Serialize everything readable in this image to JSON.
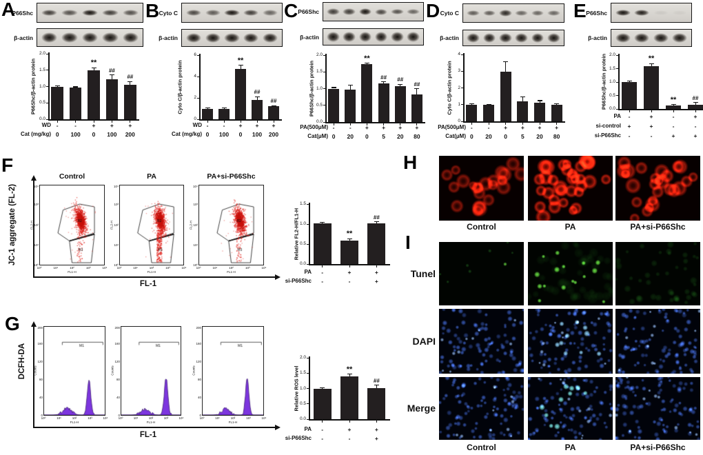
{
  "figure": {
    "background": "#ffffff",
    "bar_color": "#231f20",
    "hist_fill_color": "#7d36df",
    "dot_color": "#e5271e"
  },
  "panels": {
    "A": {
      "label": "A",
      "blots": [
        {
          "label": "P66Shc",
          "thick": false,
          "intensities": [
            0.8,
            0.7,
            1.0,
            0.8,
            0.7
          ]
        },
        {
          "label": "β-actin",
          "thick": true,
          "intensities": [
            1,
            1,
            1,
            1,
            1
          ]
        }
      ],
      "chart_data": {
        "type": "bar",
        "ylabel": "P66Shc/β-actin protein",
        "ylim": [
          0,
          2
        ],
        "yticks": [
          "0.0",
          "0.5",
          "1.0",
          "1.5",
          "2.0"
        ],
        "values": [
          1.0,
          0.97,
          1.5,
          1.22,
          1.05
        ],
        "errors": [
          0.02,
          0.02,
          0.07,
          0.13,
          0.1
        ],
        "sig": [
          "",
          "",
          "**",
          "##",
          "##"
        ],
        "xrows": [
          {
            "label": "WD",
            "values": [
              "-",
              "-",
              "+",
              "+",
              "+"
            ]
          },
          {
            "label": "Cat (mg/kg)",
            "values": [
              "0",
              "100",
              "0",
              "100",
              "200"
            ]
          }
        ]
      }
    },
    "B": {
      "label": "B",
      "blots": [
        {
          "label": "Cyto C",
          "thick": false,
          "intensities": [
            0.75,
            0.65,
            1.0,
            0.8,
            0.6
          ]
        },
        {
          "label": "β-actin",
          "thick": true,
          "intensities": [
            1,
            1,
            1,
            1,
            1
          ]
        }
      ],
      "chart_data": {
        "type": "bar",
        "ylabel": "Cyto C/β-actin protein",
        "ylim": [
          0,
          6
        ],
        "yticks": [
          "0",
          "2",
          "4",
          "6"
        ],
        "values": [
          1.0,
          1.0,
          4.7,
          1.8,
          1.2
        ],
        "errors": [
          0.06,
          0.06,
          0.35,
          0.3,
          0.08
        ],
        "sig": [
          "",
          "",
          "**",
          "##",
          "##"
        ],
        "xrows": [
          {
            "label": "WD",
            "values": [
              "-",
              "-",
              "+",
              "+",
              "+"
            ]
          },
          {
            "label": "Cat (mg/kg)",
            "values": [
              "0",
              "100",
              "0",
              "100",
              "200"
            ]
          }
        ]
      }
    },
    "C": {
      "label": "C",
      "blots": [
        {
          "label": "P66Shc",
          "thick": false,
          "intensities": [
            0.8,
            0.8,
            1.0,
            0.75,
            0.7,
            0.6
          ]
        },
        {
          "label": "β-actin",
          "thick": true,
          "intensities": [
            1,
            1,
            1,
            1,
            1,
            1
          ]
        }
      ],
      "chart_data": {
        "type": "bar",
        "ylabel": "P66Shc/β-actin protein",
        "ylim": [
          0,
          2
        ],
        "yticks": [
          "0.0",
          "0.5",
          "1.0",
          "1.5",
          "2.0"
        ],
        "values": [
          1.0,
          0.97,
          1.73,
          1.15,
          1.07,
          0.82
        ],
        "errors": [
          0.03,
          0.13,
          0.03,
          0.05,
          0.06,
          0.18
        ],
        "sig": [
          "",
          "",
          "**",
          "##",
          "##",
          "##"
        ],
        "xrows": [
          {
            "label": "PA(500μM)",
            "values": [
              "-",
              "-",
              "+",
              "+",
              "+",
              "+"
            ]
          },
          {
            "label": "Cat(μM)",
            "values": [
              "0",
              "20",
              "0",
              "5",
              "20",
              "80"
            ]
          }
        ]
      }
    },
    "D": {
      "label": "D",
      "blots": [
        {
          "label": "Cyto C",
          "thick": false,
          "intensities": [
            0.65,
            0.65,
            0.9,
            0.6,
            0.6,
            0.6
          ]
        },
        {
          "label": "β-actin",
          "thick": true,
          "intensities": [
            1,
            1,
            1,
            1,
            1,
            1
          ]
        }
      ],
      "chart_data": {
        "type": "bar",
        "ylabel": "Cyto C/β-actin protein",
        "ylim": [
          0,
          4
        ],
        "yticks": [
          "0",
          "1",
          "2",
          "3",
          "4"
        ],
        "values": [
          1.0,
          0.97,
          2.97,
          1.2,
          1.12,
          0.97
        ],
        "errors": [
          0.05,
          0.04,
          0.6,
          0.25,
          0.12,
          0.07
        ],
        "sig": [
          "",
          "",
          "",
          "",
          "",
          ""
        ],
        "xrows": [
          {
            "label": "PA(500μM)",
            "values": [
              "-",
              "-",
              "+",
              "+",
              "+",
              "+"
            ]
          },
          {
            "label": "Cat(μM)",
            "values": [
              "0",
              "20",
              "0",
              "5",
              "20",
              "80"
            ]
          }
        ]
      }
    },
    "E": {
      "label": "E",
      "blots": [
        {
          "label": "P66Shc",
          "thick": false,
          "intensities": [
            1.0,
            0.95,
            0.07,
            0.05
          ]
        },
        {
          "label": "β-actin",
          "thick": true,
          "intensities": [
            1,
            1,
            1,
            1
          ]
        }
      ],
      "chart_data": {
        "type": "bar",
        "ylabel": "P66Shc/β-actin protein",
        "ylim": [
          0,
          2
        ],
        "yticks": [
          "0.0",
          "0.5",
          "1.0",
          "1.5",
          "2.0"
        ],
        "values": [
          1.0,
          1.6,
          0.12,
          0.15
        ],
        "errors": [
          0.03,
          0.08,
          0.04,
          0.09
        ],
        "sig": [
          "",
          "**",
          "**",
          "##"
        ],
        "xrows": [
          {
            "label": "PA",
            "values": [
              "-",
              "+",
              "-",
              "+"
            ]
          },
          {
            "label": "si-control",
            "values": [
              "+",
              "+",
              "-",
              "-"
            ]
          },
          {
            "label": "si-P66Shc",
            "values": [
              "-",
              "-",
              "+",
              "+"
            ]
          }
        ]
      }
    },
    "F": {
      "label": "F",
      "ylabel": "JC-1 aggregate (FL-2)",
      "xlabel": "FL-1",
      "plot_titles": [
        "Control",
        "PA",
        "PA+si-P66Shc"
      ],
      "mini_axis": {
        "x": "FL1-H",
        "y": "FL2-H",
        "ticks": [
          "10⁰",
          "10¹",
          "10²",
          "10³",
          "10⁴"
        ]
      },
      "gate_labels": [
        "R2",
        "R3"
      ],
      "scatter_data": {
        "type": "scatter",
        "description": "JC-1 aggregate cluster in gate R2 (log FL2-H ~10^2) with monomer tail into R3",
        "tail_points": [
          55,
          240,
          65
        ]
      },
      "chart_data": {
        "type": "bar",
        "ylabel": "Relative FL2-H/FL1-H",
        "ylim": [
          0,
          1.5
        ],
        "yticks": [
          "0.0",
          "0.5",
          "1.0",
          "1.5"
        ],
        "values": [
          1.02,
          0.58,
          1.01
        ],
        "errors": [
          0.02,
          0.05,
          0.05
        ],
        "sig": [
          "",
          "**",
          "##"
        ],
        "xrows": [
          {
            "label": "PA",
            "values": [
              "-",
              "+",
              "+"
            ]
          },
          {
            "label": "si-P66Shc",
            "values": [
              "-",
              "-",
              "+"
            ]
          }
        ]
      }
    },
    "G": {
      "label": "G",
      "ylabel": "DCFH-DA",
      "xlabel": "FL-1",
      "mini_axis": {
        "x": "FL1-H",
        "y": "Counts",
        "yticks": [
          "0",
          "40",
          "80",
          "120",
          "160",
          "200"
        ],
        "xticks": [
          "10⁰",
          "10¹",
          "10²",
          "10³",
          "10⁴"
        ],
        "marker": "M1"
      },
      "hist_data": {
        "type": "area",
        "ylim": [
          0,
          200
        ],
        "series": [
          {
            "name": "Control",
            "peaks": [
              {
                "center": 0.38,
                "height": 16,
                "width": 0.1
              },
              {
                "center": 0.74,
                "height": 80,
                "width": 0.04
              }
            ]
          },
          {
            "name": "PA",
            "peaks": [
              {
                "center": 0.4,
                "height": 13,
                "width": 0.1
              },
              {
                "center": 0.755,
                "height": 84,
                "width": 0.042
              }
            ]
          },
          {
            "name": "PA+si-P66Shc",
            "peaks": [
              {
                "center": 0.38,
                "height": 15,
                "width": 0.09
              },
              {
                "center": 0.735,
                "height": 82,
                "width": 0.04
              }
            ]
          }
        ]
      },
      "chart_data": {
        "type": "bar",
        "ylabel": "Relative ROS level",
        "ylim": [
          0,
          2
        ],
        "yticks": [
          "0.0",
          "0.5",
          "1.0",
          "1.5",
          "2.0"
        ],
        "values": [
          1.0,
          1.4,
          1.01
        ],
        "errors": [
          0.02,
          0.07,
          0.1
        ],
        "sig": [
          "",
          "**",
          "##"
        ],
        "xrows": [
          {
            "label": "PA",
            "values": [
              "-",
              "+",
              "+"
            ]
          },
          {
            "label": "si-P66Shc",
            "values": [
              "-",
              "-",
              "+"
            ]
          }
        ]
      }
    },
    "H": {
      "label": "H",
      "captions": [
        "Control",
        "PA",
        "PA+si-P66Shc"
      ],
      "stain": "red mitochondrial fluorescence"
    },
    "I": {
      "label": "I",
      "row_labels": [
        "Tunel",
        "DAPI",
        "Merge"
      ],
      "captions": [
        "Control",
        "PA",
        "PA+si-P66Shc"
      ]
    }
  }
}
